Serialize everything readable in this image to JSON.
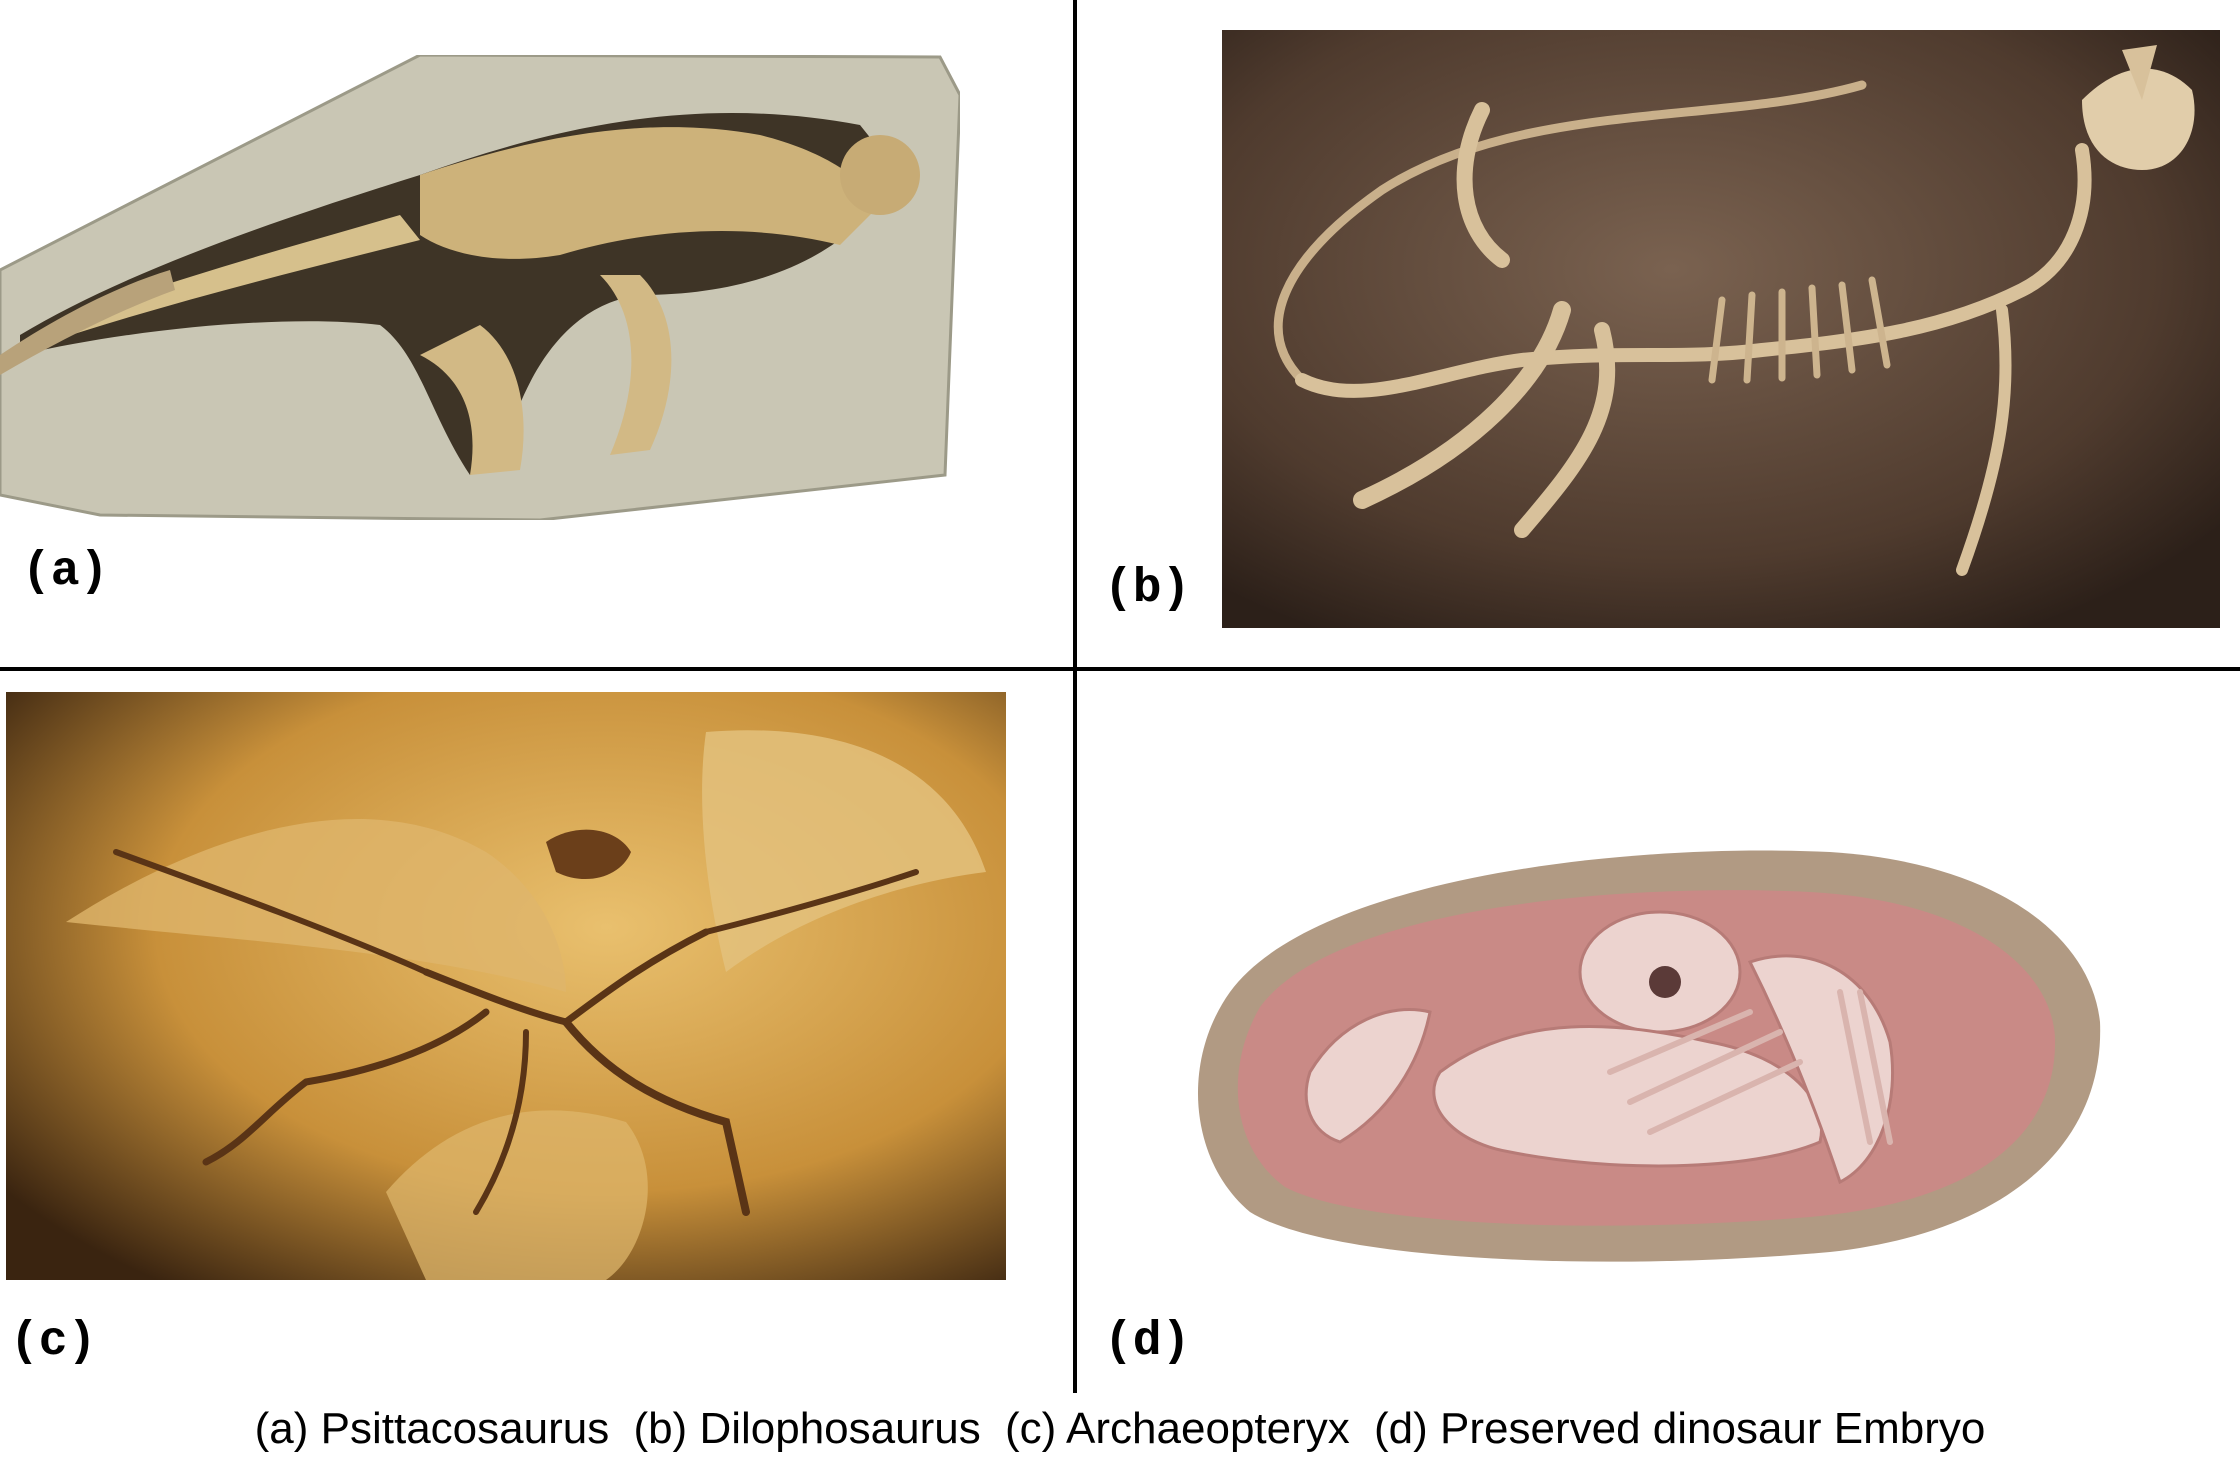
{
  "panels": [
    {
      "tag": "(a)",
      "subject": "Psittacosaurus",
      "icon": "psittacosaurus-fossil-photo"
    },
    {
      "tag": "(b)",
      "subject": "Dilophosaurus",
      "icon": "dilophosaurus-skeleton-photo"
    },
    {
      "tag": "(c)",
      "subject": "Archaeopteryx",
      "icon": "archaeopteryx-fossil-photo"
    },
    {
      "tag": "(d)",
      "subject": "Preserved dinosaur Embryo",
      "icon": "dinosaur-embryo-egg-photo"
    }
  ],
  "caption": {
    "a": "(a) Psittacosaurus",
    "b": "(b) Dilophosaurus",
    "c": "(c) Archaeopteryx",
    "d": "(d) Preserved dinosaur Embryo"
  },
  "colors": {
    "divider": "#000000",
    "slab_a": "#c9c6b4",
    "bg_b": "#5a4536",
    "bg_c": "#c99433",
    "egg_d": "#c98a86"
  }
}
